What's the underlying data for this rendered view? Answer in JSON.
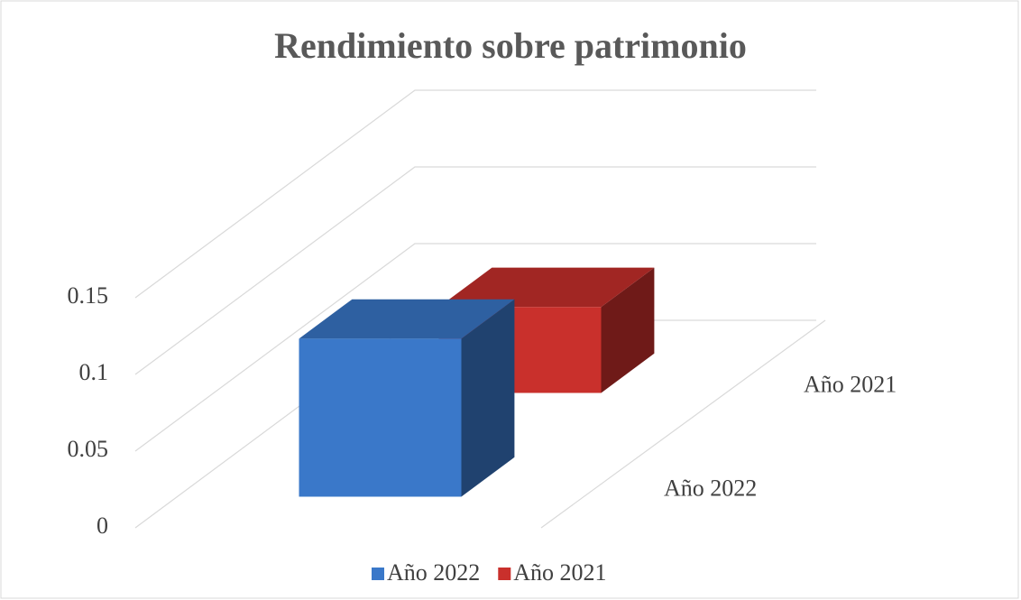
{
  "chart_data": {
    "type": "bar3d",
    "title": "Rendimiento  sobre   patrimonio",
    "series": [
      {
        "name": "Año 2022",
        "color": "#3a78c9",
        "values": [
          0.103
        ]
      },
      {
        "name": "Año 2021",
        "color": "#c9302c",
        "values": [
          0.056
        ]
      }
    ],
    "ylim": [
      0,
      0.15
    ],
    "yticks": [
      0,
      0.05,
      0.1,
      0.15
    ],
    "grid": true,
    "legend": "bottom"
  }
}
